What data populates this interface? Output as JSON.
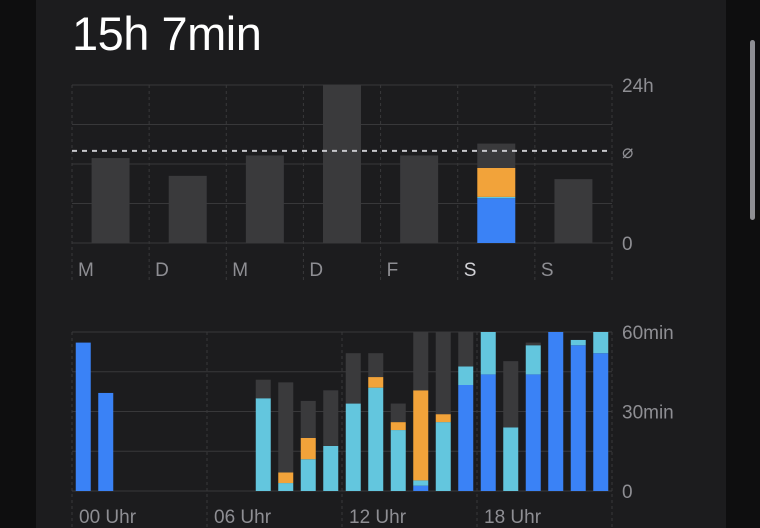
{
  "header": {
    "total_time": "15h 7min"
  },
  "colors": {
    "blue": "#3a82f6",
    "cyan": "#63c6de",
    "orange": "#f2a33a",
    "gray": "#3a3a3c",
    "grid": "#38383a",
    "text": "#8e8e93",
    "highlight": "#d1d1d6"
  },
  "chart_data": [
    {
      "type": "bar",
      "stacked": true,
      "categories": [
        "M",
        "D",
        "M",
        "D",
        "F",
        "S",
        "S"
      ],
      "selected_index": 5,
      "ylim": [
        0,
        24
      ],
      "y_unit": "h",
      "y_ticks": [
        {
          "value": 24,
          "label": "24h"
        },
        {
          "value": 14,
          "label": "⌀"
        },
        {
          "value": 0,
          "label": "0"
        }
      ],
      "average": 14,
      "grid": true,
      "series": [
        {
          "color": "blue",
          "values": [
            0,
            0,
            0,
            0,
            0,
            6.8,
            0
          ]
        },
        {
          "color": "cyan",
          "values": [
            0,
            0,
            0,
            0,
            0,
            0.2,
            0
          ]
        },
        {
          "color": "orange",
          "values": [
            0,
            0,
            0,
            0,
            0,
            4.4,
            0
          ]
        },
        {
          "color": "gray",
          "values": [
            12.9,
            10.2,
            13.3,
            24,
            13.3,
            3.7,
            9.7
          ]
        }
      ]
    },
    {
      "type": "bar",
      "stacked": true,
      "categories": [
        "0",
        "1",
        "2",
        "3",
        "4",
        "5",
        "6",
        "7",
        "8",
        "9",
        "10",
        "11",
        "12",
        "13",
        "14",
        "15",
        "16",
        "17",
        "18",
        "19",
        "20",
        "21",
        "22",
        "23"
      ],
      "x_tick_labels": [
        {
          "hour": 0,
          "label": "00 Uhr"
        },
        {
          "hour": 6,
          "label": "06 Uhr"
        },
        {
          "hour": 12,
          "label": "12 Uhr"
        },
        {
          "hour": 18,
          "label": "18 Uhr"
        }
      ],
      "ylim": [
        0,
        60
      ],
      "y_unit": "min",
      "y_ticks": [
        {
          "value": 60,
          "label": "60min"
        },
        {
          "value": 30,
          "label": "30min"
        },
        {
          "value": 0,
          "label": "0"
        }
      ],
      "grid": true,
      "series": [
        {
          "color": "blue",
          "values": [
            56,
            37,
            0,
            0,
            0,
            0,
            0,
            0,
            0,
            0,
            0,
            0,
            0,
            0,
            0,
            2,
            0,
            40,
            44,
            0,
            44,
            60,
            55,
            52
          ]
        },
        {
          "color": "cyan",
          "values": [
            0,
            0,
            0,
            0,
            0,
            0,
            0,
            0,
            35,
            3,
            12,
            17,
            33,
            39,
            23,
            2,
            26,
            7,
            16,
            24,
            11,
            0,
            2,
            8
          ]
        },
        {
          "color": "orange",
          "values": [
            0,
            0,
            0,
            0,
            0,
            0,
            0,
            0,
            0,
            4,
            8,
            0,
            0,
            4,
            3,
            34,
            3,
            0,
            0,
            0,
            0,
            0,
            0,
            0
          ]
        },
        {
          "color": "gray",
          "values": [
            0,
            0,
            0,
            0,
            0,
            0,
            0,
            0,
            7,
            34,
            14,
            21,
            19,
            9,
            7,
            22,
            31,
            13,
            0,
            25,
            1,
            0,
            0,
            0
          ]
        }
      ]
    }
  ]
}
